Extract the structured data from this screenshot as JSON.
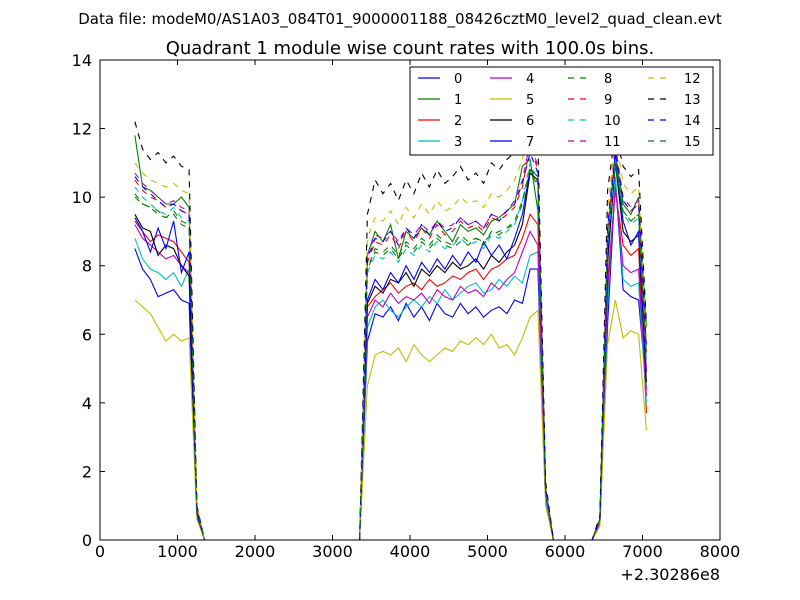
{
  "figure": {
    "suptitle": "Data file: modeM0/AS1A03_084T01_9000001188_08426cztM0_level2_quad_clean.evt"
  },
  "chart_data": {
    "type": "line",
    "title": "Quadrant 1 module wise count rates with 100.0s bins.",
    "xlabel": "",
    "ylabel": "",
    "x_offset_label": "+2.30286e8",
    "xlim": [
      0,
      8000
    ],
    "ylim": [
      0,
      14
    ],
    "x_ticks": [
      0,
      1000,
      2000,
      3000,
      4000,
      5000,
      6000,
      7000,
      8000
    ],
    "y_ticks": [
      0,
      2,
      4,
      6,
      8,
      10,
      12,
      14
    ],
    "grid": false,
    "legend_position": "top-right",
    "legend_columns": 4,
    "x": [
      450,
      550,
      650,
      750,
      850,
      950,
      1050,
      1150,
      1250,
      1350,
      1450,
      1550,
      1650,
      1750,
      1850,
      1950,
      2050,
      2150,
      2250,
      2350,
      2450,
      2550,
      2650,
      2750,
      2850,
      2950,
      3050,
      3150,
      3250,
      3350,
      3450,
      3550,
      3650,
      3750,
      3850,
      3950,
      4050,
      4150,
      4250,
      4350,
      4450,
      4550,
      4650,
      4750,
      4850,
      4950,
      5050,
      5150,
      5250,
      5350,
      5450,
      5550,
      5650,
      5750,
      5850,
      5950,
      6050,
      6150,
      6250,
      6350,
      6450,
      6550,
      6650,
      6750,
      6850,
      6950,
      7050
    ],
    "series": [
      {
        "name": "0",
        "color": "#0000ff",
        "dash": "solid",
        "values": [
          8.5,
          7.9,
          7.6,
          7.1,
          7.2,
          7.3,
          7.0,
          6.9,
          0.7,
          0,
          0,
          0,
          0,
          0,
          0,
          0,
          0,
          0,
          0,
          0,
          0,
          0,
          0,
          0,
          0,
          0,
          0,
          0,
          0,
          0,
          5.8,
          6.6,
          6.5,
          6.8,
          6.4,
          6.9,
          6.5,
          6.8,
          6.4,
          6.9,
          6.6,
          6.5,
          6.9,
          6.6,
          6.8,
          6.5,
          6.7,
          6.8,
          6.6,
          7.0,
          6.9,
          7.9,
          7.9,
          1.2,
          0,
          0,
          0,
          0,
          0,
          0,
          0.5,
          6.3,
          10.5,
          7.3,
          7.1,
          7.0,
          4.4
        ]
      },
      {
        "name": "1",
        "color": "#008000",
        "dash": "solid",
        "values": [
          11.8,
          10.3,
          10.2,
          10.0,
          9.8,
          9.8,
          10.0,
          9.7,
          0.9,
          0,
          0,
          0,
          0,
          0,
          0,
          0,
          0,
          0,
          0,
          0,
          0,
          0,
          0,
          0,
          0,
          0,
          0,
          0,
          0,
          0,
          8.3,
          9.0,
          8.7,
          9.2,
          8.2,
          9.0,
          8.8,
          9.1,
          8.9,
          9.3,
          9.0,
          8.7,
          9.2,
          9.0,
          9.1,
          8.9,
          9.3,
          9.4,
          9.6,
          9.8,
          10.9,
          11.1,
          9.6,
          1.5,
          0,
          0,
          0,
          0,
          0,
          0,
          0.6,
          8.5,
          11.3,
          9.8,
          9.5,
          10.0,
          6.2
        ]
      },
      {
        "name": "2",
        "color": "#ff0000",
        "dash": "solid",
        "values": [
          9.3,
          9.0,
          8.7,
          8.9,
          8.8,
          8.7,
          8.4,
          8.1,
          0.8,
          0,
          0,
          0,
          0,
          0,
          0,
          0,
          0,
          0,
          0,
          0,
          0,
          0,
          0,
          0,
          0,
          0,
          0,
          0,
          0,
          0,
          6.8,
          7.1,
          7.3,
          7.5,
          7.2,
          7.4,
          7.5,
          7.3,
          7.6,
          7.4,
          7.5,
          7.7,
          7.6,
          7.8,
          7.9,
          7.6,
          7.9,
          8.0,
          8.2,
          8.3,
          8.8,
          9.5,
          9.2,
          1.3,
          0,
          0,
          0,
          0,
          0,
          0,
          0.6,
          7.6,
          10.2,
          8.6,
          8.3,
          8.5,
          3.7
        ]
      },
      {
        "name": "3",
        "color": "#00bfbf",
        "dash": "solid",
        "values": [
          8.8,
          8.2,
          7.9,
          7.8,
          7.6,
          7.8,
          7.4,
          7.9,
          0.8,
          0,
          0,
          0,
          0,
          0,
          0,
          0,
          0,
          0,
          0,
          0,
          0,
          0,
          0,
          0,
          0,
          0,
          0,
          0,
          0,
          0,
          6.2,
          6.8,
          7.0,
          6.7,
          6.5,
          6.8,
          7.0,
          6.8,
          7.1,
          6.9,
          7.3,
          7.0,
          7.2,
          7.4,
          7.5,
          7.2,
          7.3,
          7.6,
          7.4,
          7.7,
          7.5,
          8.3,
          8.4,
          1.2,
          0,
          0,
          0,
          0,
          0,
          0,
          0.5,
          6.9,
          10.6,
          7.6,
          7.4,
          7.5,
          4.0
        ]
      },
      {
        "name": "4",
        "color": "#bf00bf",
        "dash": "solid",
        "values": [
          9.2,
          8.8,
          8.6,
          8.4,
          8.2,
          8.3,
          8.0,
          7.8,
          0.8,
          0,
          0,
          0,
          0,
          0,
          0,
          0,
          0,
          0,
          0,
          0,
          0,
          0,
          0,
          0,
          0,
          0,
          0,
          0,
          0,
          0,
          6.5,
          7.0,
          6.8,
          7.2,
          6.9,
          7.1,
          7.0,
          7.2,
          6.9,
          7.3,
          7.1,
          7.0,
          7.4,
          7.2,
          7.3,
          7.1,
          7.5,
          7.3,
          7.6,
          7.8,
          8.4,
          9.0,
          8.6,
          1.3,
          0,
          0,
          0,
          0,
          0,
          0,
          0.5,
          7.3,
          10.3,
          8.0,
          7.8,
          7.9,
          4.2
        ]
      },
      {
        "name": "5",
        "color": "#bfbf00",
        "dash": "solid",
        "values": [
          7.0,
          6.8,
          6.6,
          6.2,
          5.8,
          6.0,
          5.8,
          5.9,
          0.6,
          0,
          0,
          0,
          0,
          0,
          0,
          0,
          0,
          0,
          0,
          0,
          0,
          0,
          0,
          0,
          0,
          0,
          0,
          0,
          0,
          0,
          4.5,
          5.4,
          5.5,
          5.4,
          5.6,
          5.2,
          5.7,
          5.4,
          5.2,
          5.4,
          5.6,
          5.5,
          5.8,
          5.7,
          5.9,
          5.7,
          6.0,
          5.6,
          5.7,
          5.4,
          5.9,
          6.5,
          6.7,
          1.0,
          0,
          0,
          0,
          0,
          0,
          0,
          0.4,
          5.7,
          7.0,
          5.9,
          6.1,
          6.0,
          3.2
        ]
      },
      {
        "name": "6",
        "color": "#000000",
        "dash": "solid",
        "values": [
          9.5,
          9.1,
          9.0,
          8.3,
          8.6,
          8.5,
          8.0,
          7.7,
          0.8,
          0,
          0,
          0,
          0,
          0,
          0,
          0,
          0,
          0,
          0,
          0,
          0,
          0,
          0,
          0,
          0,
          0,
          0,
          0,
          0,
          0,
          6.9,
          7.4,
          7.2,
          7.6,
          7.5,
          7.8,
          7.4,
          7.9,
          7.7,
          8.0,
          7.8,
          8.1,
          7.9,
          8.0,
          8.2,
          7.9,
          8.3,
          8.1,
          8.4,
          8.6,
          9.2,
          10.7,
          10.5,
          1.4,
          0,
          0,
          0,
          0,
          0,
          0,
          0.6,
          8.1,
          11.0,
          9.0,
          8.7,
          8.9,
          4.6
        ]
      },
      {
        "name": "7",
        "color": "#0000ff",
        "dash": "solid",
        "values": [
          9.4,
          9.0,
          8.4,
          9.1,
          8.5,
          9.3,
          7.8,
          8.4,
          0.8,
          0,
          0,
          0,
          0,
          0,
          0,
          0,
          0,
          0,
          0,
          0,
          0,
          0,
          0,
          0,
          0,
          0,
          0,
          0,
          0,
          0,
          7.0,
          7.6,
          7.3,
          7.8,
          7.5,
          8.0,
          7.6,
          8.1,
          7.8,
          8.2,
          7.9,
          8.3,
          8.0,
          8.4,
          8.1,
          8.7,
          8.3,
          8.6,
          8.2,
          8.8,
          9.5,
          10.8,
          10.6,
          1.4,
          0,
          0,
          0,
          0,
          0,
          0,
          0.6,
          8.4,
          11.2,
          9.3,
          8.6,
          9.0,
          4.9
        ]
      },
      {
        "name": "8",
        "color": "#008000",
        "dash": "dashed",
        "values": [
          10.0,
          9.8,
          9.7,
          9.6,
          9.4,
          9.6,
          9.3,
          9.2,
          0.9,
          0,
          0,
          0,
          0,
          0,
          0,
          0,
          0,
          0,
          0,
          0,
          0,
          0,
          0,
          0,
          0,
          0,
          0,
          0,
          0,
          0,
          7.9,
          8.4,
          8.3,
          8.5,
          8.2,
          8.6,
          8.4,
          8.7,
          8.5,
          8.8,
          8.6,
          8.5,
          8.7,
          8.6,
          8.8,
          8.7,
          8.9,
          9.0,
          9.1,
          9.2,
          9.8,
          10.9,
          10.4,
          1.5,
          0,
          0,
          0,
          0,
          0,
          0,
          0.6,
          8.7,
          11.0,
          9.6,
          9.3,
          9.5,
          5.3
        ]
      },
      {
        "name": "9",
        "color": "#ff0000",
        "dash": "dashed",
        "values": [
          10.5,
          10.2,
          10.0,
          9.9,
          9.7,
          9.8,
          9.6,
          9.5,
          0.9,
          0,
          0,
          0,
          0,
          0,
          0,
          0,
          0,
          0,
          0,
          0,
          0,
          0,
          0,
          0,
          0,
          0,
          0,
          0,
          0,
          0,
          8.1,
          8.7,
          8.6,
          8.9,
          8.5,
          9.0,
          8.7,
          9.1,
          8.8,
          9.2,
          8.9,
          9.0,
          9.3,
          9.1,
          9.2,
          9.0,
          9.4,
          9.3,
          9.5,
          9.7,
          10.3,
          11.5,
          10.8,
          1.5,
          0,
          0,
          0,
          0,
          0,
          0,
          0.6,
          9.0,
          11.4,
          9.9,
          9.6,
          9.8,
          5.5
        ]
      },
      {
        "name": "10",
        "color": "#00bfbf",
        "dash": "dashed",
        "values": [
          10.3,
          10.0,
          9.8,
          9.6,
          9.5,
          9.7,
          9.4,
          9.3,
          0.9,
          0,
          0,
          0,
          0,
          0,
          0,
          0,
          0,
          0,
          0,
          0,
          0,
          0,
          0,
          0,
          0,
          0,
          0,
          0,
          0,
          0,
          7.8,
          8.3,
          8.2,
          8.4,
          8.1,
          8.5,
          8.3,
          8.6,
          8.4,
          8.7,
          8.5,
          8.6,
          8.8,
          8.6,
          8.7,
          8.5,
          8.9,
          8.8,
          9.0,
          9.2,
          9.9,
          11.0,
          10.5,
          1.4,
          0,
          0,
          0,
          0,
          0,
          0,
          0.6,
          8.6,
          11.1,
          9.5,
          9.2,
          9.4,
          5.2
        ]
      },
      {
        "name": "11",
        "color": "#bf00bf",
        "dash": "dashed",
        "values": [
          10.7,
          10.4,
          10.2,
          10.0,
          9.8,
          9.9,
          9.7,
          9.6,
          0.9,
          0,
          0,
          0,
          0,
          0,
          0,
          0,
          0,
          0,
          0,
          0,
          0,
          0,
          0,
          0,
          0,
          0,
          0,
          0,
          0,
          0,
          8.3,
          8.9,
          8.8,
          9.0,
          8.7,
          9.1,
          8.9,
          9.2,
          9.0,
          9.3,
          9.1,
          9.2,
          9.4,
          9.2,
          9.3,
          9.1,
          9.5,
          9.4,
          9.6,
          9.9,
          10.5,
          11.6,
          10.9,
          1.5,
          0,
          0,
          0,
          0,
          0,
          0,
          0.6,
          9.2,
          11.5,
          10.0,
          9.7,
          9.9,
          5.6
        ]
      },
      {
        "name": "12",
        "color": "#bfbf00",
        "dash": "dashed",
        "values": [
          11.0,
          10.7,
          10.5,
          10.4,
          10.3,
          10.4,
          10.2,
          10.1,
          1.0,
          0,
          0,
          0,
          0,
          0,
          0,
          0,
          0,
          0,
          0,
          0,
          0,
          0,
          0,
          0,
          0,
          0,
          0,
          0,
          0,
          0,
          8.8,
          9.4,
          9.3,
          9.6,
          9.2,
          9.7,
          9.4,
          9.8,
          9.5,
          9.9,
          9.6,
          9.7,
          10.0,
          9.8,
          9.9,
          9.7,
          10.1,
          10.0,
          10.2,
          10.5,
          11.1,
          12.3,
          11.4,
          1.6,
          0,
          0,
          0,
          0,
          0,
          0,
          0.7,
          9.6,
          11.8,
          10.4,
          10.1,
          10.3,
          5.9
        ]
      },
      {
        "name": "13",
        "color": "#000000",
        "dash": "dashed",
        "values": [
          12.2,
          11.4,
          11.1,
          11.3,
          11.0,
          11.2,
          10.9,
          10.8,
          1.0,
          0,
          0,
          0,
          0,
          0,
          0,
          0,
          0,
          0,
          0,
          0,
          0,
          0,
          0,
          0,
          0,
          0,
          0,
          0,
          0,
          0,
          9.5,
          10.5,
          10.1,
          10.4,
          9.9,
          10.5,
          10.1,
          10.7,
          10.3,
          10.8,
          10.4,
          10.6,
          10.9,
          10.5,
          10.7,
          10.4,
          11.0,
          10.8,
          11.1,
          11.3,
          11.8,
          12.0,
          11.6,
          1.7,
          0,
          0,
          0,
          0,
          0,
          0,
          0.7,
          10.2,
          11.9,
          10.9,
          10.6,
          10.8,
          6.3
        ]
      },
      {
        "name": "14",
        "color": "#0000ff",
        "dash": "dashed",
        "values": [
          10.6,
          10.3,
          10.1,
          9.9,
          9.7,
          9.8,
          9.6,
          9.5,
          0.9,
          0,
          0,
          0,
          0,
          0,
          0,
          0,
          0,
          0,
          0,
          0,
          0,
          0,
          0,
          0,
          0,
          0,
          0,
          0,
          0,
          0,
          8.2,
          8.8,
          8.7,
          9.0,
          8.6,
          9.1,
          8.8,
          9.2,
          8.9,
          9.3,
          9.0,
          9.1,
          9.4,
          9.2,
          9.3,
          9.1,
          9.5,
          9.3,
          9.6,
          9.8,
          10.4,
          11.3,
          10.7,
          1.5,
          0,
          0,
          0,
          0,
          0,
          0,
          0.6,
          9.1,
          11.3,
          9.9,
          9.6,
          9.8,
          5.6
        ]
      },
      {
        "name": "15",
        "color": "#008000",
        "dash": "dashed",
        "values": [
          10.1,
          9.8,
          9.7,
          9.5,
          9.4,
          9.5,
          9.2,
          9.1,
          0.9,
          0,
          0,
          0,
          0,
          0,
          0,
          0,
          0,
          0,
          0,
          0,
          0,
          0,
          0,
          0,
          0,
          0,
          0,
          0,
          0,
          0,
          7.9,
          8.5,
          8.4,
          8.6,
          8.3,
          8.7,
          8.5,
          8.8,
          8.6,
          8.9,
          8.7,
          8.6,
          8.9,
          8.7,
          8.8,
          8.6,
          9.0,
          8.9,
          9.1,
          9.3,
          9.9,
          10.8,
          10.3,
          1.4,
          0,
          0,
          0,
          0,
          0,
          0,
          0.6,
          8.8,
          11.0,
          9.6,
          9.3,
          9.5,
          5.4
        ]
      }
    ]
  }
}
